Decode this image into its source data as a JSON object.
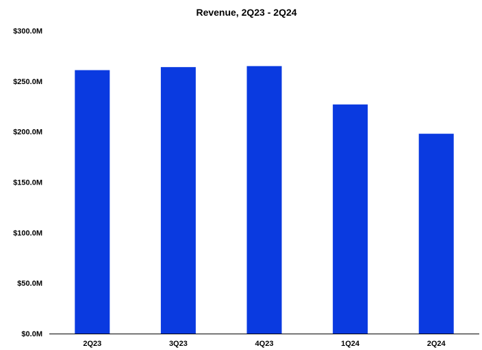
{
  "chart_data": {
    "type": "bar",
    "title": "Revenue, 2Q23 - 2Q24",
    "xlabel": "",
    "ylabel": "",
    "categories": [
      "2Q23",
      "3Q23",
      "4Q23",
      "1Q24",
      "2Q24"
    ],
    "values": [
      261,
      264,
      265,
      227,
      198
    ],
    "value_unit": "$M",
    "ylim": [
      0,
      300
    ],
    "yticks": [
      0,
      50,
      100,
      150,
      200,
      250,
      300
    ],
    "ytick_labels": [
      "$0.0M",
      "$50.0M",
      "$100.0M",
      "$150.0M",
      "$200.0M",
      "$250.0M",
      "$300.0M"
    ],
    "grid": false,
    "legend": "none",
    "bar_color": "#0a3ae0",
    "axis_color": "#000000"
  }
}
